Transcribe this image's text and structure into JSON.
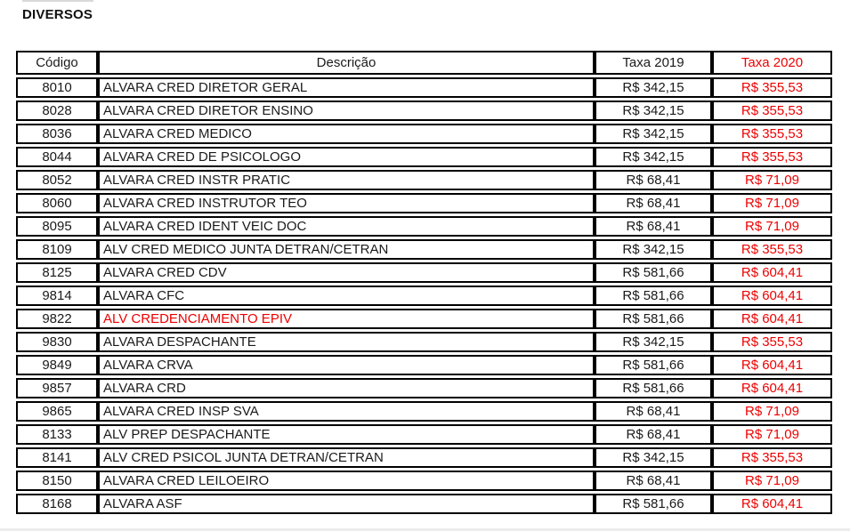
{
  "page": {
    "title": "DIVERSOS"
  },
  "colors": {
    "accent_red": "#ee0000",
    "text_black": "#1a1a1a",
    "border_black": "#000000"
  },
  "table": {
    "headers": [
      "Código",
      "Descrição",
      "Taxa 2019",
      "Taxa 2020"
    ],
    "rows": [
      {
        "code": "8010",
        "description": "ALVARA CRED DIRETOR GERAL",
        "tax_2019": "R$ 342,15",
        "tax_2020": "R$ 355,53",
        "highlight": false
      },
      {
        "code": "8028",
        "description": "ALVARA CRED DIRETOR ENSINO",
        "tax_2019": "R$ 342,15",
        "tax_2020": "R$ 355,53",
        "highlight": false
      },
      {
        "code": "8036",
        "description": "ALVARA CRED MEDICO",
        "tax_2019": "R$ 342,15",
        "tax_2020": "R$ 355,53",
        "highlight": false
      },
      {
        "code": "8044",
        "description": "ALVARA CRED DE PSICOLOGO",
        "tax_2019": "R$ 342,15",
        "tax_2020": "R$ 355,53",
        "highlight": false
      },
      {
        "code": "8052",
        "description": "ALVARA CRED INSTR PRATIC",
        "tax_2019": "R$ 68,41",
        "tax_2020": "R$ 71,09",
        "highlight": false
      },
      {
        "code": "8060",
        "description": "ALVARA CRED INSTRUTOR TEO",
        "tax_2019": "R$ 68,41",
        "tax_2020": "R$ 71,09",
        "highlight": false
      },
      {
        "code": "8095",
        "description": "ALVARA CRED IDENT VEIC DOC",
        "tax_2019": "R$ 68,41",
        "tax_2020": "R$ 71,09",
        "highlight": false
      },
      {
        "code": "8109",
        "description": "ALV CRED MEDICO JUNTA DETRAN/CETRAN",
        "tax_2019": "R$ 342,15",
        "tax_2020": "R$ 355,53",
        "highlight": false
      },
      {
        "code": "8125",
        "description": "ALVARA CRED CDV",
        "tax_2019": "R$ 581,66",
        "tax_2020": "R$ 604,41",
        "highlight": false
      },
      {
        "code": "9814",
        "description": "ALVARA CFC",
        "tax_2019": "R$ 581,66",
        "tax_2020": "R$ 604,41",
        "highlight": false
      },
      {
        "code": "9822",
        "description": "ALV CREDENCIAMENTO EPIV",
        "tax_2019": "R$ 581,66",
        "tax_2020": "R$ 604,41",
        "highlight": true
      },
      {
        "code": "9830",
        "description": "ALVARA DESPACHANTE",
        "tax_2019": "R$ 342,15",
        "tax_2020": "R$ 355,53",
        "highlight": false
      },
      {
        "code": "9849",
        "description": "ALVARA CRVA",
        "tax_2019": "R$ 581,66",
        "tax_2020": "R$ 604,41",
        "highlight": false
      },
      {
        "code": "9857",
        "description": "ALVARA CRD",
        "tax_2019": "R$ 581,66",
        "tax_2020": "R$ 604,41",
        "highlight": false
      },
      {
        "code": "9865",
        "description": "ALVARA CRED INSP SVA",
        "tax_2019": "R$ 68,41",
        "tax_2020": "R$ 71,09",
        "highlight": false
      },
      {
        "code": "8133",
        "description": "ALV PREP DESPACHANTE",
        "tax_2019": "R$ 68,41",
        "tax_2020": "R$ 71,09",
        "highlight": false
      },
      {
        "code": "8141",
        "description": "ALV CRED PSICOL JUNTA DETRAN/CETRAN",
        "tax_2019": "R$ 342,15",
        "tax_2020": "R$ 355,53",
        "highlight": false
      },
      {
        "code": "8150",
        "description": "ALVARA CRED LEILOEIRO",
        "tax_2019": "R$ 68,41",
        "tax_2020": "R$ 71,09",
        "highlight": false
      },
      {
        "code": "8168",
        "description": "ALVARA ASF",
        "tax_2019": "R$ 581,66",
        "tax_2020": "R$ 604,41",
        "highlight": false
      }
    ]
  }
}
